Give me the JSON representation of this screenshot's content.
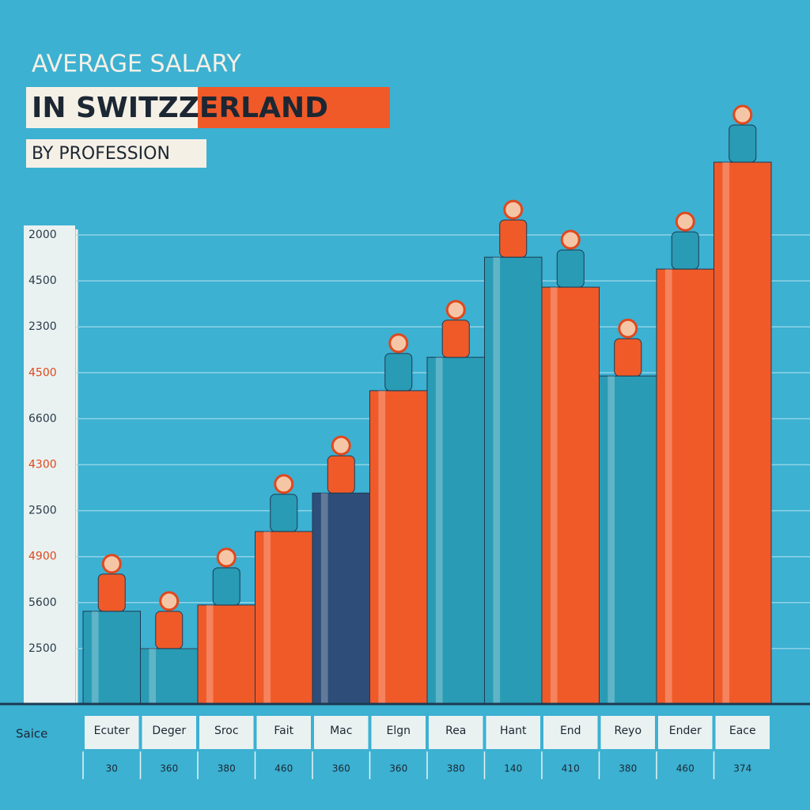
{
  "chart_data": {
    "type": "bar",
    "title": "AVERAGE SALARY",
    "subtitle": "IN SWITZZERLAND",
    "subtitle2": "BY PROFESSION",
    "y_axis_labels": [
      "2000",
      "4500",
      "2300",
      "4500",
      "6600",
      "4300",
      "2500",
      "4900",
      "5600",
      "2500"
    ],
    "x_axis_label": "Saice",
    "categories": [
      "Ecuter",
      "Deger",
      "Sroc",
      "Fait",
      "Mac",
      "Elgn",
      "Rea",
      "Hant",
      "End",
      "Reyo",
      "Ender",
      "Eace"
    ],
    "bottom_labels": [
      "30",
      "360",
      "380",
      "460",
      "360",
      "360",
      "380",
      "140",
      "410",
      "380",
      "460",
      "374"
    ],
    "values": [
      16.4,
      9.8,
      17.5,
      30.5,
      37.3,
      55.4,
      61.3,
      79,
      73.7,
      58,
      76.9,
      95.8
    ],
    "colors": [
      "#2a9bb4",
      "#2a9bb4",
      "#f05a28",
      "#f05a28",
      "#2e4d78",
      "#f05a28",
      "#2a9bb4",
      "#2a9bb4",
      "#f05a28",
      "#2a9bb4",
      "#f05a28",
      "#f05a28"
    ],
    "ylim": [
      0,
      100
    ]
  }
}
